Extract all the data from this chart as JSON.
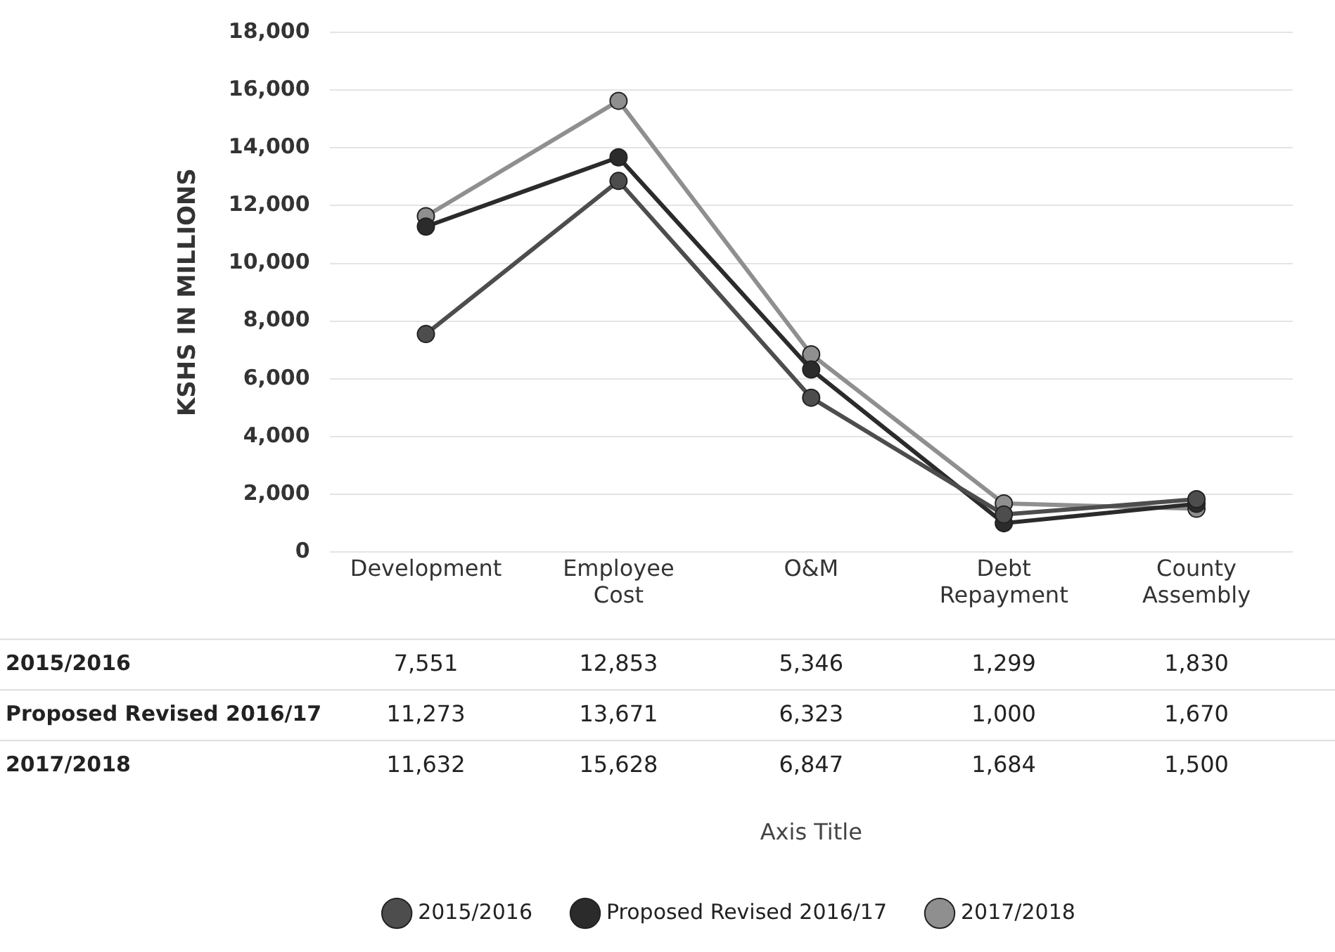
{
  "chart_data": {
    "type": "line",
    "ylabel": "KSHS IN MILLIONS",
    "annotations": [
      "Axis Title"
    ],
    "categories": [
      "Development",
      "Employee Cost",
      "O&M",
      "Debt Repayment",
      "County Assembly"
    ],
    "series": [
      {
        "name": "2015/2016",
        "color": "#4d4d4d",
        "values": [
          7551,
          12853,
          5346,
          1299,
          1830
        ],
        "value_labels": [
          "7,551",
          "12,853",
          "5,346",
          "1,299",
          "1,830"
        ]
      },
      {
        "name": "Proposed Revised 2016/17",
        "color": "#2b2b2b",
        "values": [
          11273,
          13671,
          6323,
          1000,
          1670
        ],
        "value_labels": [
          "11,273",
          "13,671",
          "6,323",
          "1,000",
          "1,670"
        ]
      },
      {
        "name": "2017/2018",
        "color": "#8f8f8f",
        "values": [
          11632,
          15628,
          6847,
          1684,
          1500
        ],
        "value_labels": [
          "11,632",
          "15,628",
          "6,847",
          "1,684",
          "1,500"
        ]
      }
    ],
    "ylim": [
      0,
      18000
    ],
    "yticks": [
      0,
      {
        "value": 2000,
        "label": "2,000"
      },
      {
        "value": 4000,
        "label": "4,000"
      },
      {
        "value": 6000,
        "label": "6,000"
      },
      {
        "value": 8000,
        "label": "8,000"
      },
      {
        "value": 10000,
        "label": "10,000"
      },
      {
        "value": 12000,
        "label": "12,000"
      },
      {
        "value": 14000,
        "label": "14,000"
      },
      {
        "value": 16000,
        "label": "16,000"
      },
      {
        "value": 18000,
        "label": "18,000"
      }
    ],
    "grid": "y",
    "legend": "bottom",
    "marker": "circle",
    "line_style": "solid"
  }
}
